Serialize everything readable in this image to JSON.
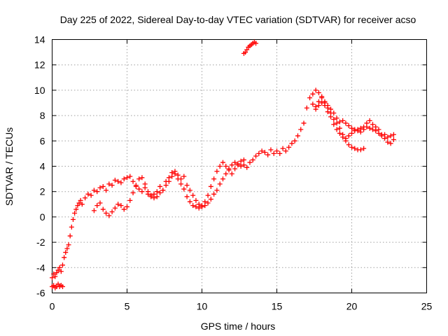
{
  "chart_data": {
    "type": "scatter",
    "title": "Day 225 of 2022, Sidereal Day-to-day VTEC variation (SDTVAR) for receiver acso",
    "xlabel": "GPS time / hours",
    "ylabel": "SDTVAR / TECUs",
    "xlim": [
      0,
      25
    ],
    "ylim": [
      -6,
      14
    ],
    "xticks": [
      "0",
      "5",
      "10",
      "15",
      "20",
      "25"
    ],
    "yticks": [
      "-6",
      "-4",
      "-2",
      "0",
      "2",
      "4",
      "6",
      "8",
      "10",
      "12",
      "14"
    ],
    "grid": true,
    "marker": "plus",
    "series": [
      {
        "name": "SDTVAR",
        "color": "#ff0000",
        "x": [
          0.0,
          0.1,
          0.2,
          0.3,
          0.4,
          0.5,
          0.6,
          0.7,
          0.0,
          0.1,
          0.2,
          0.3,
          0.4,
          0.5,
          0.6,
          0.7,
          0.8,
          0.9,
          1.0,
          1.1,
          1.2,
          1.3,
          1.4,
          1.5,
          1.6,
          1.7,
          1.8,
          1.9,
          2.0,
          2.2,
          2.4,
          2.6,
          2.8,
          3.0,
          3.2,
          3.4,
          3.6,
          3.8,
          4.0,
          4.2,
          4.4,
          4.6,
          4.8,
          5.0,
          5.2,
          5.4,
          5.6,
          5.8,
          6.0,
          6.2,
          6.4,
          6.6,
          6.8,
          7.0,
          7.2,
          7.4,
          7.6,
          7.8,
          8.0,
          8.2,
          8.4,
          8.6,
          8.8,
          9.0,
          9.2,
          9.4,
          9.6,
          9.8,
          10.0,
          10.2,
          10.4,
          10.6,
          10.8,
          11.0,
          11.2,
          11.4,
          11.6,
          11.8,
          12.0,
          12.2,
          12.4,
          12.6,
          12.8,
          13.0,
          13.2,
          13.4,
          13.6,
          13.8,
          14.0,
          14.2,
          14.4,
          14.6,
          14.8,
          15.0,
          15.2,
          15.4,
          15.6,
          15.8,
          16.0,
          16.2,
          16.4,
          16.6,
          16.8,
          17.0,
          17.2,
          17.4,
          17.6,
          17.8,
          18.0,
          18.2,
          18.4,
          18.6,
          18.8,
          19.0,
          19.2,
          19.4,
          19.6,
          19.8,
          20.0,
          20.2,
          20.4,
          20.6,
          20.8,
          21.0,
          21.2,
          21.4,
          21.6,
          21.8,
          22.0,
          22.2,
          22.4,
          22.6,
          22.8,
          2.8,
          3.0,
          3.2,
          3.4,
          3.6,
          3.8,
          4.0,
          4.2,
          4.4,
          4.6,
          4.8,
          5.0,
          5.2,
          5.4,
          5.6,
          5.8,
          6.0,
          6.2,
          6.4,
          6.6,
          6.8,
          7.0,
          7.2,
          7.4,
          7.6,
          7.8,
          8.0,
          8.2,
          8.4,
          8.6,
          8.8,
          9.0,
          9.2,
          9.4,
          9.6,
          9.8,
          10.0,
          10.2,
          10.4,
          10.6,
          10.8,
          11.0,
          11.2,
          11.4,
          11.6,
          11.8,
          12.0,
          12.2,
          12.4,
          12.6,
          12.8,
          17.4,
          17.6,
          17.8,
          18.0,
          18.2,
          18.4,
          18.6,
          18.8,
          19.0,
          19.2,
          19.4,
          19.6,
          19.8,
          20.0,
          20.2,
          20.4,
          20.6,
          20.8,
          17.6,
          17.8,
          18.0,
          18.2,
          18.4,
          18.6,
          18.8,
          19.0,
          19.2,
          19.4,
          19.6,
          19.8,
          20.0,
          20.2,
          20.4,
          20.6,
          20.8,
          21.0,
          21.2,
          21.4,
          21.6,
          21.8,
          22.0,
          22.2,
          22.4,
          22.6,
          22.8,
          12.8,
          12.9,
          13.0,
          13.1,
          13.2,
          13.3,
          13.4,
          13.5,
          13.6
        ],
        "y": [
          -5.5,
          -5.4,
          -5.6,
          -5.5,
          -5.3,
          -5.5,
          -5.4,
          -5.5,
          -4.8,
          -4.5,
          -4.7,
          -4.4,
          -4.2,
          -4.0,
          -4.3,
          -3.8,
          -3.2,
          -2.8,
          -2.5,
          -2.2,
          -1.5,
          -0.8,
          -0.2,
          0.3,
          0.6,
          0.9,
          1.1,
          1.3,
          1.0,
          1.5,
          1.8,
          1.7,
          2.1,
          2.0,
          2.3,
          2.4,
          2.1,
          2.6,
          2.5,
          2.9,
          2.8,
          2.7,
          3.0,
          3.1,
          3.2,
          2.8,
          2.5,
          2.2,
          2.0,
          2.3,
          1.8,
          1.6,
          1.8,
          2.0,
          2.4,
          2.1,
          2.8,
          3.1,
          3.5,
          3.6,
          3.3,
          3.0,
          3.2,
          2.5,
          2.1,
          1.7,
          1.3,
          1.0,
          0.8,
          0.9,
          1.1,
          1.4,
          1.8,
          2.1,
          2.6,
          3.0,
          3.4,
          3.8,
          4.1,
          4.3,
          4.2,
          4.0,
          4.1,
          3.9,
          4.3,
          4.5,
          4.8,
          5.0,
          5.2,
          5.1,
          4.9,
          5.3,
          5.0,
          5.2,
          5.0,
          5.4,
          5.2,
          5.5,
          5.8,
          6.0,
          6.4,
          6.9,
          7.4,
          8.6,
          9.4,
          9.7,
          10.0,
          9.8,
          9.5,
          9.1,
          8.8,
          8.5,
          8.2,
          7.8,
          7.5,
          7.6,
          7.4,
          7.2,
          7.0,
          6.9,
          6.8,
          6.7,
          6.9,
          7.1,
          7.0,
          6.9,
          6.8,
          6.6,
          6.4,
          6.5,
          6.3,
          6.4,
          6.5,
          0.5,
          0.9,
          1.1,
          0.6,
          0.3,
          0.1,
          0.4,
          0.7,
          1.0,
          0.9,
          0.6,
          0.8,
          1.3,
          1.9,
          2.4,
          3.0,
          3.1,
          2.6,
          2.0,
          1.7,
          1.5,
          1.6,
          1.9,
          2.1,
          2.5,
          2.8,
          3.2,
          3.4,
          3.0,
          2.6,
          2.2,
          1.6,
          1.2,
          0.9,
          0.8,
          0.7,
          0.9,
          1.2,
          1.7,
          2.4,
          3.0,
          3.6,
          4.0,
          4.3,
          4.0,
          3.7,
          3.4,
          3.8,
          4.1,
          4.4,
          4.5,
          8.9,
          8.7,
          9.1,
          9.4,
          9.0,
          8.6,
          8.2,
          7.7,
          7.4,
          7.0,
          6.5,
          6.0,
          5.7,
          5.5,
          5.4,
          5.3,
          5.3,
          5.4,
          8.5,
          8.8,
          9.0,
          8.8,
          8.3,
          7.9,
          7.3,
          6.9,
          6.6,
          6.3,
          6.2,
          6.4,
          6.6,
          6.8,
          6.9,
          7.0,
          7.1,
          7.4,
          7.6,
          7.3,
          7.1,
          6.9,
          6.5,
          6.2,
          5.9,
          5.8,
          6.1,
          12.9,
          13.0,
          13.2,
          13.4,
          13.5,
          13.6,
          13.7,
          13.8,
          13.7
        ]
      }
    ]
  }
}
